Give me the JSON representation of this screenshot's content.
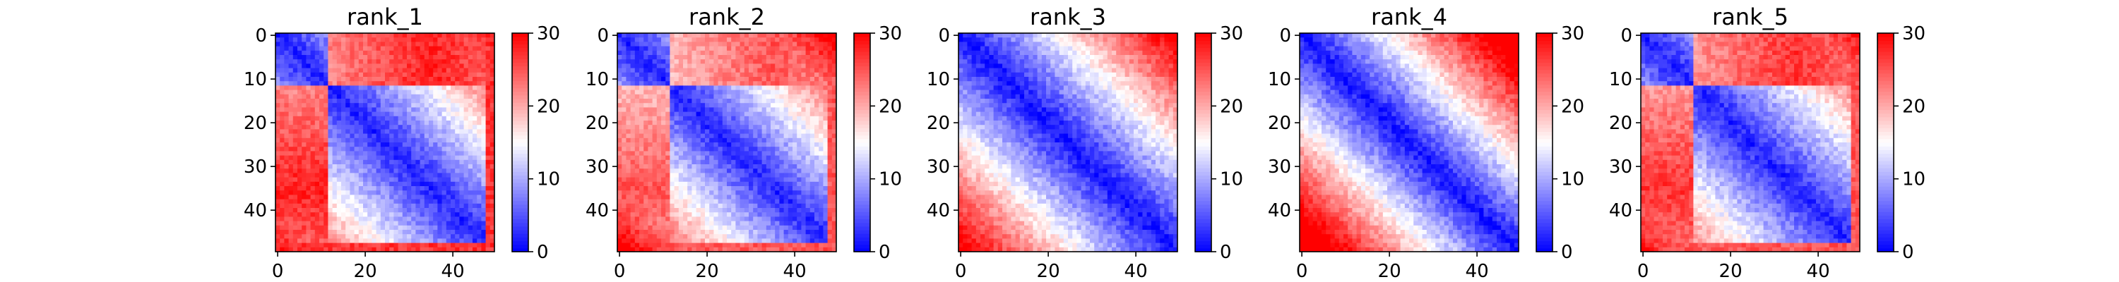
{
  "figure": {
    "background": "#ffffff"
  },
  "chart_data": [
    {
      "type": "heatmap",
      "title": "rank_1",
      "grid_size": 50,
      "xlim": [
        0,
        49
      ],
      "ylim": [
        49,
        0
      ],
      "x_ticks": [
        "0",
        "20",
        "40"
      ],
      "x_tick_values": [
        0,
        20,
        40
      ],
      "y_ticks": [
        "0",
        "10",
        "20",
        "30",
        "40"
      ],
      "y_tick_values": [
        0,
        10,
        20,
        30,
        40
      ],
      "colorbar": {
        "min": 0,
        "max": 30,
        "ticks": [
          "0",
          "10",
          "20",
          "30"
        ],
        "tick_values": [
          0,
          10,
          20,
          30
        ],
        "colormap": "bwr"
      },
      "value_model": {
        "diagonal_value": 2,
        "slope": 0.55,
        "domain_split": 12,
        "cross_domain_value": 28,
        "terminal_rows": [
          48,
          49
        ],
        "terminal_value": 27
      }
    },
    {
      "type": "heatmap",
      "title": "rank_2",
      "grid_size": 50,
      "xlim": [
        0,
        49
      ],
      "ylim": [
        49,
        0
      ],
      "x_ticks": [
        "0",
        "20",
        "40"
      ],
      "x_tick_values": [
        0,
        20,
        40
      ],
      "y_ticks": [
        "0",
        "10",
        "20",
        "30",
        "40"
      ],
      "y_tick_values": [
        0,
        10,
        20,
        30,
        40
      ],
      "colorbar": {
        "min": 0,
        "max": 30,
        "ticks": [
          "0",
          "10",
          "20",
          "30"
        ],
        "tick_values": [
          0,
          10,
          20,
          30
        ],
        "colormap": "bwr"
      },
      "value_model": {
        "diagonal_value": 2,
        "slope": 0.6,
        "domain_split": 12,
        "cross_domain_value": 25,
        "terminal_rows": [
          48,
          49
        ],
        "terminal_value": 25
      }
    },
    {
      "type": "heatmap",
      "title": "rank_3",
      "grid_size": 50,
      "xlim": [
        0,
        49
      ],
      "ylim": [
        49,
        0
      ],
      "x_ticks": [
        "0",
        "20",
        "40"
      ],
      "x_tick_values": [
        0,
        20,
        40
      ],
      "y_ticks": [
        "0",
        "10",
        "20",
        "30",
        "40"
      ],
      "y_tick_values": [
        0,
        10,
        20,
        30,
        40
      ],
      "colorbar": {
        "min": 0,
        "max": 30,
        "ticks": [
          "0",
          "10",
          "20",
          "30"
        ],
        "tick_values": [
          0,
          10,
          20,
          30
        ],
        "colormap": "bwr"
      },
      "value_model": {
        "diagonal_value": 1,
        "slope": 0.62,
        "domain_split": 0,
        "cross_domain_value": 0,
        "terminal_rows": [],
        "terminal_value": 0
      }
    },
    {
      "type": "heatmap",
      "title": "rank_4",
      "grid_size": 50,
      "xlim": [
        0,
        49
      ],
      "ylim": [
        49,
        0
      ],
      "x_ticks": [
        "0",
        "20",
        "40"
      ],
      "x_tick_values": [
        0,
        20,
        40
      ],
      "y_ticks": [
        "0",
        "10",
        "20",
        "30",
        "40"
      ],
      "y_tick_values": [
        0,
        10,
        20,
        30,
        40
      ],
      "colorbar": {
        "min": 0,
        "max": 30,
        "ticks": [
          "0",
          "10",
          "20",
          "30"
        ],
        "tick_values": [
          0,
          10,
          20,
          30
        ],
        "colormap": "bwr"
      },
      "value_model": {
        "diagonal_value": 1,
        "slope": 0.72,
        "domain_split": 0,
        "cross_domain_value": 0,
        "terminal_rows": [],
        "terminal_value": 0
      }
    },
    {
      "type": "heatmap",
      "title": "rank_5",
      "grid_size": 50,
      "xlim": [
        0,
        49
      ],
      "ylim": [
        49,
        0
      ],
      "x_ticks": [
        "0",
        "20",
        "40"
      ],
      "x_tick_values": [
        0,
        20,
        40
      ],
      "y_ticks": [
        "0",
        "10",
        "20",
        "30",
        "40"
      ],
      "y_tick_values": [
        0,
        10,
        20,
        30,
        40
      ],
      "colorbar": {
        "min": 0,
        "max": 30,
        "ticks": [
          "0",
          "10",
          "20",
          "30"
        ],
        "tick_values": [
          0,
          10,
          20,
          30
        ],
        "colormap": "bwr"
      },
      "value_model": {
        "diagonal_value": 2,
        "slope": 0.55,
        "domain_split": 12,
        "cross_domain_value": 27,
        "terminal_rows": [
          48,
          49
        ],
        "terminal_value": 25
      }
    }
  ]
}
